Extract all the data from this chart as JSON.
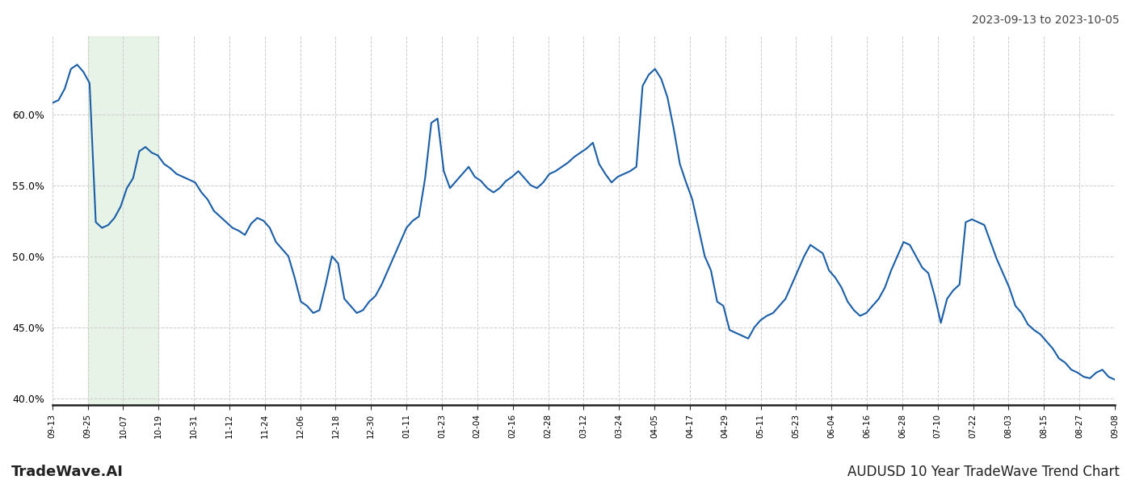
{
  "title_top_right": "2023-09-13 to 2023-10-05",
  "title_bottom_left": "TradeWave.AI",
  "title_bottom_right": "AUDUSD 10 Year TradeWave Trend Chart",
  "background_color": "#ffffff",
  "line_color": "#1a5ea8",
  "line_width": 1.5,
  "shade_color": "#c8e6c9",
  "shade_alpha": 0.45,
  "ylim": [
    0.395,
    0.655
  ],
  "yticks": [
    0.4,
    0.45,
    0.5,
    0.55,
    0.6
  ],
  "xtick_labels": [
    "09-13",
    "09-25",
    "10-07",
    "10-19",
    "10-31",
    "11-12",
    "11-24",
    "12-06",
    "12-18",
    "12-30",
    "01-11",
    "01-23",
    "02-04",
    "02-16",
    "02-28",
    "03-12",
    "03-24",
    "04-05",
    "04-17",
    "04-29",
    "05-11",
    "05-23",
    "06-04",
    "06-16",
    "06-28",
    "07-10",
    "07-22",
    "08-03",
    "08-15",
    "08-27",
    "09-08"
  ],
  "shade_xstart_label": 1,
  "shade_xend_label": 3,
  "values": [
    0.608,
    0.61,
    0.618,
    0.632,
    0.635,
    0.63,
    0.622,
    0.524,
    0.52,
    0.522,
    0.527,
    0.535,
    0.548,
    0.555,
    0.574,
    0.577,
    0.573,
    0.571,
    0.565,
    0.562,
    0.558,
    0.556,
    0.554,
    0.552,
    0.545,
    0.54,
    0.532,
    0.528,
    0.524,
    0.52,
    0.518,
    0.515,
    0.523,
    0.527,
    0.525,
    0.52,
    0.51,
    0.505,
    0.5,
    0.485,
    0.468,
    0.465,
    0.46,
    0.462,
    0.48,
    0.5,
    0.495,
    0.47,
    0.465,
    0.46,
    0.462,
    0.468,
    0.472,
    0.48,
    0.49,
    0.5,
    0.51,
    0.52,
    0.525,
    0.528,
    0.555,
    0.594,
    0.597,
    0.56,
    0.548,
    0.553,
    0.558,
    0.563,
    0.556,
    0.553,
    0.548,
    0.545,
    0.548,
    0.553,
    0.556,
    0.56,
    0.555,
    0.55,
    0.548,
    0.552,
    0.558,
    0.56,
    0.563,
    0.566,
    0.57,
    0.573,
    0.576,
    0.58,
    0.565,
    0.558,
    0.552,
    0.556,
    0.558,
    0.56,
    0.563,
    0.62,
    0.628,
    0.632,
    0.625,
    0.612,
    0.59,
    0.565,
    0.552,
    0.54,
    0.52,
    0.5,
    0.49,
    0.468,
    0.465,
    0.448,
    0.446,
    0.444,
    0.442,
    0.45,
    0.455,
    0.458,
    0.46,
    0.465,
    0.47,
    0.48,
    0.49,
    0.5,
    0.508,
    0.505,
    0.502,
    0.49,
    0.485,
    0.478,
    0.468,
    0.462,
    0.458,
    0.46,
    0.465,
    0.47,
    0.478,
    0.49,
    0.5,
    0.51,
    0.508,
    0.5,
    0.492,
    0.488,
    0.472,
    0.453,
    0.47,
    0.476,
    0.48,
    0.524,
    0.526,
    0.524,
    0.522,
    0.51,
    0.498,
    0.488,
    0.478,
    0.465,
    0.46,
    0.452,
    0.448,
    0.445,
    0.44,
    0.435,
    0.428,
    0.425,
    0.42,
    0.418,
    0.415,
    0.414,
    0.418,
    0.42,
    0.415,
    0.413
  ]
}
